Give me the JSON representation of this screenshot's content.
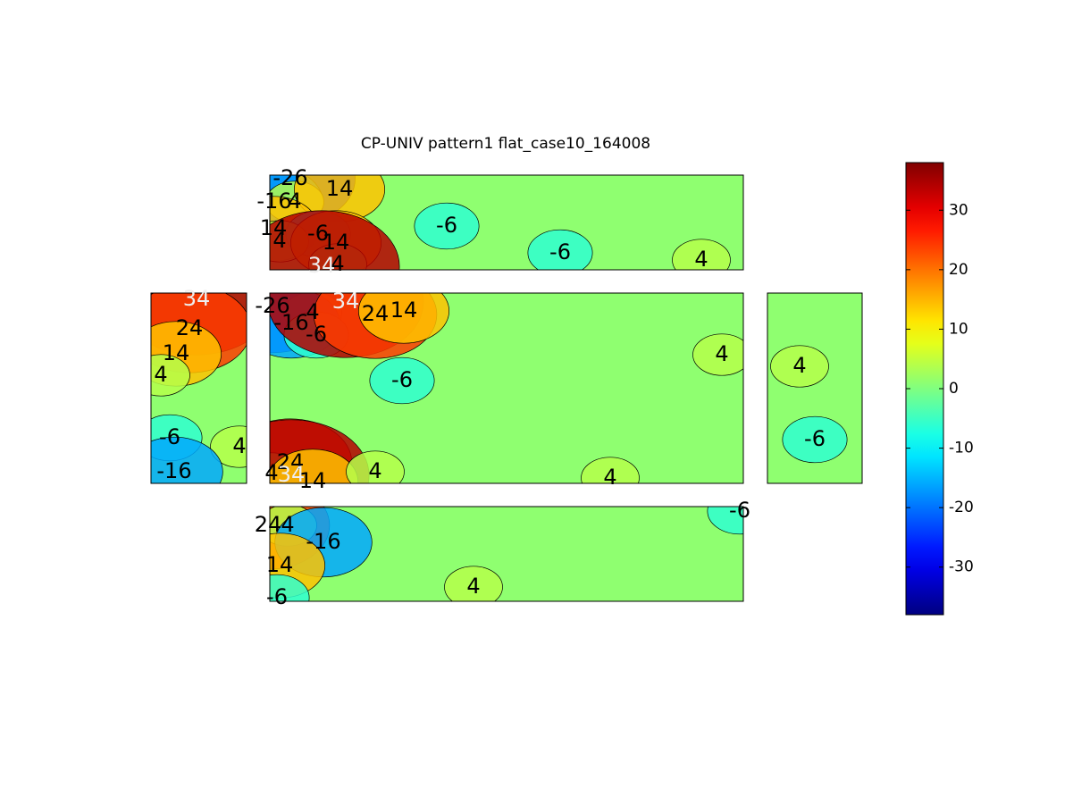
{
  "chart_data": {
    "type": "contour",
    "title": "CP-UNIV pattern1 flat_case10_164008",
    "colormap": "jet",
    "clim": [
      -38,
      38
    ],
    "cticks": [
      -30,
      -20,
      -10,
      0,
      10,
      20,
      30
    ],
    "panels": [
      {
        "labels": [
          -26,
          -16,
          4,
          14,
          14,
          -6,
          4,
          14,
          4,
          34,
          -6,
          -6,
          4
        ]
      },
      {
        "labels": [
          34,
          24,
          14,
          4,
          -6,
          4,
          -16
        ]
      },
      {
        "labels": [
          -26,
          4,
          -16,
          -6,
          34,
          24,
          14,
          4,
          -6,
          24,
          4,
          34,
          14,
          4,
          4
        ]
      },
      {
        "labels": [
          4,
          -6
        ]
      },
      {
        "labels": [
          24,
          4,
          -16,
          14,
          -6,
          4,
          -6
        ]
      }
    ]
  }
}
